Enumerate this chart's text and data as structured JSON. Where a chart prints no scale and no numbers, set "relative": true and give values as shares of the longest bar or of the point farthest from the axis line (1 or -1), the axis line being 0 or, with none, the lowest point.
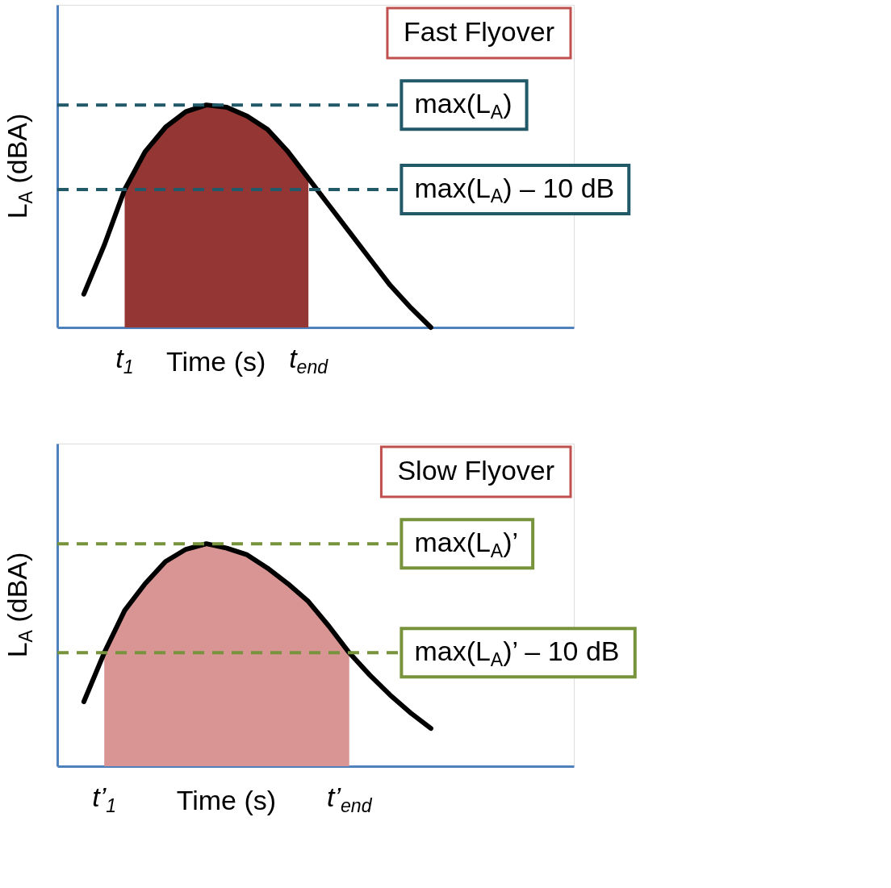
{
  "chart_data": [
    {
      "type": "line",
      "title": "Fast Flyover",
      "xlabel": "Time (s)",
      "ylabel": "L$_{A}$ (dBA)",
      "relative": true,
      "categories": [
        null,
        null,
        null,
        null,
        null,
        null,
        null,
        null,
        null,
        null,
        null,
        null,
        null,
        null,
        null,
        null,
        null,
        null
      ],
      "series": [
        {
          "type": "area",
          "color": "#943634",
          "values": [
            null,
            null,
            0.62,
            0.79,
            0.9,
            0.97,
            1.0,
            0.99,
            0.95,
            0.89,
            0.79,
            0.67,
            null,
            null,
            null,
            null,
            null,
            null
          ]
        },
        {
          "color": "#000000",
          "values": [
            0.15,
            0.37,
            0.62,
            0.79,
            0.9,
            0.97,
            1.0,
            0.99,
            0.95,
            0.89,
            0.79,
            0.67,
            0.55,
            0.43,
            0.31,
            0.19,
            0.09,
            0.0
          ]
        }
      ],
      "ref_lines": [
        {
          "axis": "y",
          "value": 1.0,
          "label": "max(L$_{A}$)",
          "color": "#215968",
          "line_style": "dashed"
        },
        {
          "axis": "y",
          "value": 0.62,
          "label": "max(L$_{A}$) – 10 dB",
          "color": "#215968",
          "line_style": "dashed"
        }
      ],
      "annotations": [
        "t$_{1}$",
        "t$_{end}$"
      ]
    },
    {
      "type": "line",
      "title": "Slow Flyover",
      "xlabel": "Time (s)",
      "ylabel": "L$_{A}$ (dBA)",
      "relative": true,
      "categories": [
        null,
        null,
        null,
        null,
        null,
        null,
        null,
        null,
        null,
        null,
        null,
        null,
        null,
        null,
        null,
        null,
        null,
        null
      ],
      "series": [
        {
          "type": "area",
          "color": "#d99594",
          "values": [
            null,
            0.51,
            0.7,
            0.82,
            0.92,
            0.975,
            1.0,
            0.98,
            0.95,
            0.89,
            0.82,
            0.74,
            0.63,
            0.51,
            null,
            null,
            null,
            null
          ]
        },
        {
          "color": "#000000",
          "values": [
            0.29,
            0.51,
            0.7,
            0.82,
            0.92,
            0.975,
            1.0,
            0.98,
            0.95,
            0.89,
            0.82,
            0.74,
            0.63,
            0.51,
            0.41,
            0.32,
            0.24,
            0.17
          ]
        }
      ],
      "ref_lines": [
        {
          "axis": "y",
          "value": 1.0,
          "label": "max(L$_{A}$)’",
          "color": "#77933c",
          "line_style": "dashed"
        },
        {
          "axis": "y",
          "value": 0.51,
          "label": "max(L$_{A}$)’ – 10 dB",
          "color": "#77933c",
          "line_style": "dashed"
        }
      ],
      "annotations": [
        "t’$_{1}$",
        "t’$_{end}$"
      ]
    }
  ]
}
